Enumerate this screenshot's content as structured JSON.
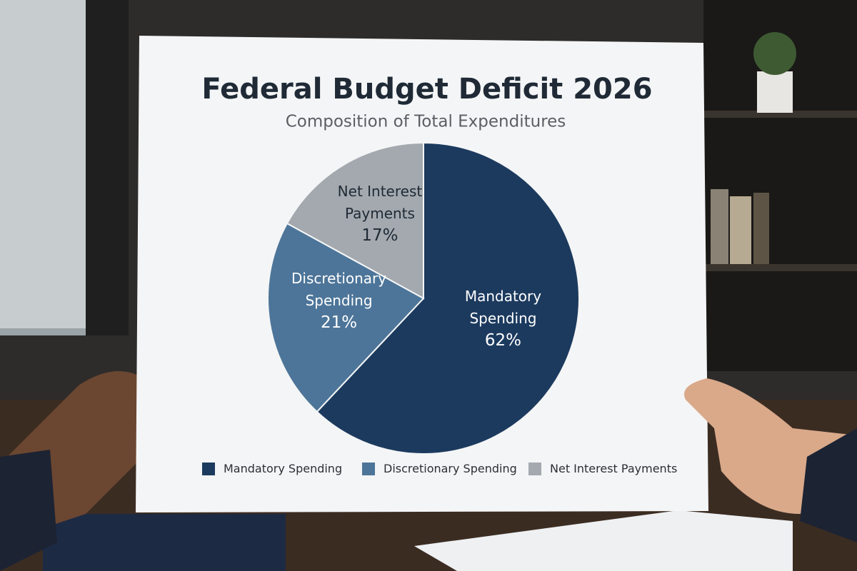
{
  "chart_data": {
    "type": "pie",
    "title": "Federal Budget Deficit 2026",
    "subtitle": "Composition of Total Expenditures",
    "categories": [
      "Mandatory Spending",
      "Discretionary Spending",
      "Net Interest Payments"
    ],
    "values": [
      62,
      21,
      17
    ],
    "value_labels": [
      "62%",
      "21%",
      "17%"
    ],
    "colors": [
      "#1c3a5e",
      "#4d7599",
      "#a3a9ae"
    ],
    "legend": "bottom"
  }
}
